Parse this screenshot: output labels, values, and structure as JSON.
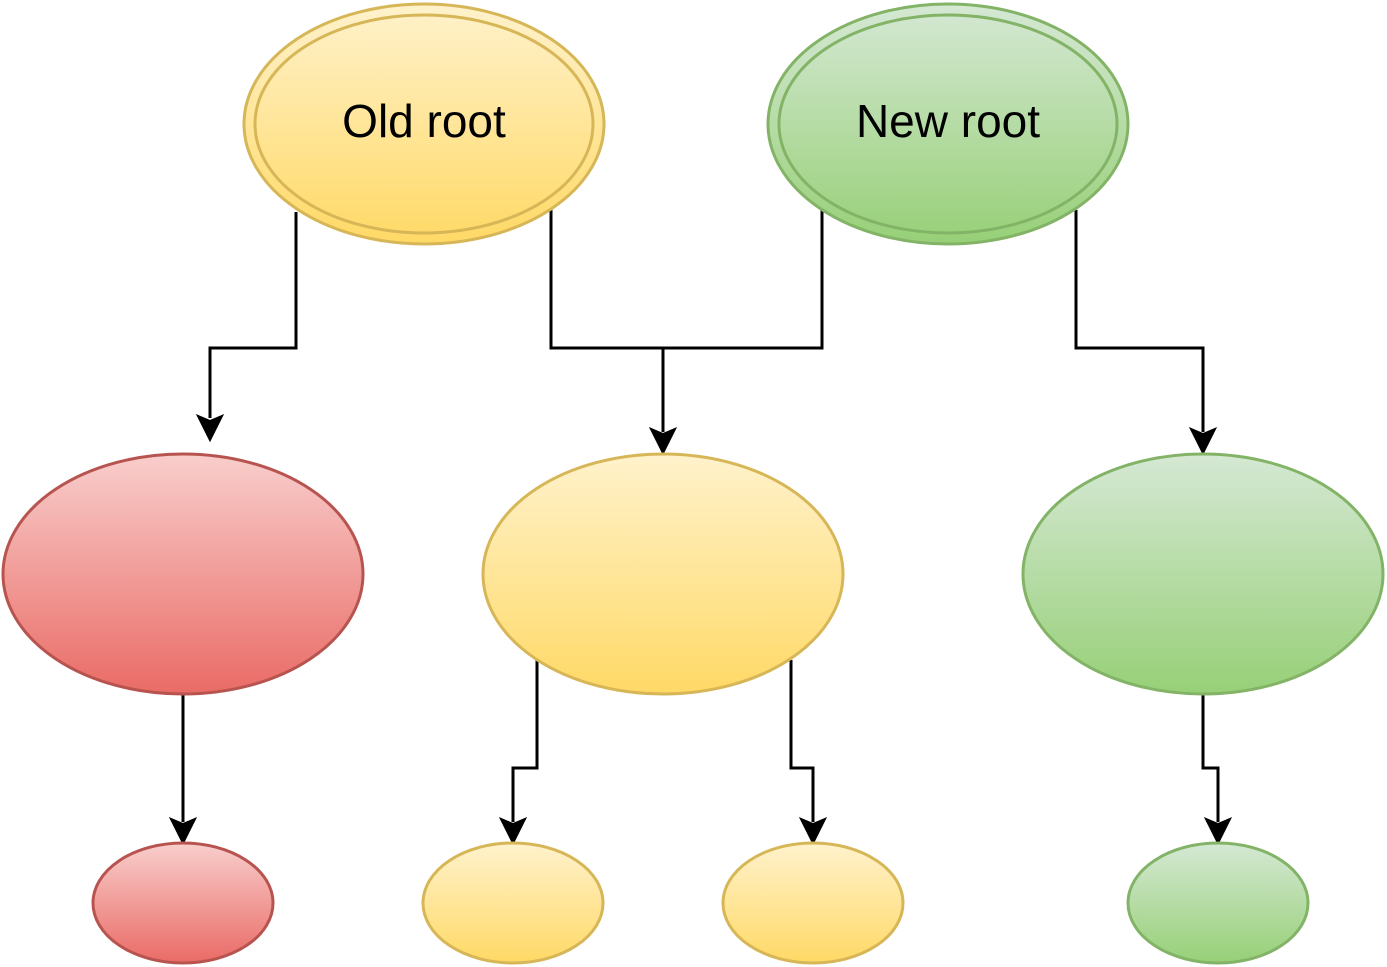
{
  "nodes": {
    "old_root": {
      "label": "Old root",
      "color": "yellow"
    },
    "new_root": {
      "label": "New root",
      "color": "green"
    },
    "left_child": {
      "color": "red"
    },
    "shared_child": {
      "color": "yellow"
    },
    "right_child": {
      "color": "green"
    },
    "red_leaf": {
      "color": "red"
    },
    "yellow_leaf_left": {
      "color": "yellow"
    },
    "yellow_leaf_right": {
      "color": "yellow"
    },
    "green_leaf": {
      "color": "green"
    }
  },
  "colors": {
    "yellow_fill_top": "#fff2cc",
    "yellow_fill_bottom": "#ffd966",
    "yellow_stroke": "#d6b656",
    "green_fill_top": "#d5e8d4",
    "green_fill_bottom": "#97d077",
    "green_stroke": "#82b366",
    "red_fill_top": "#f8cecc",
    "red_fill_bottom": "#ea6b66",
    "red_stroke": "#b85450",
    "edge": "#000000"
  }
}
